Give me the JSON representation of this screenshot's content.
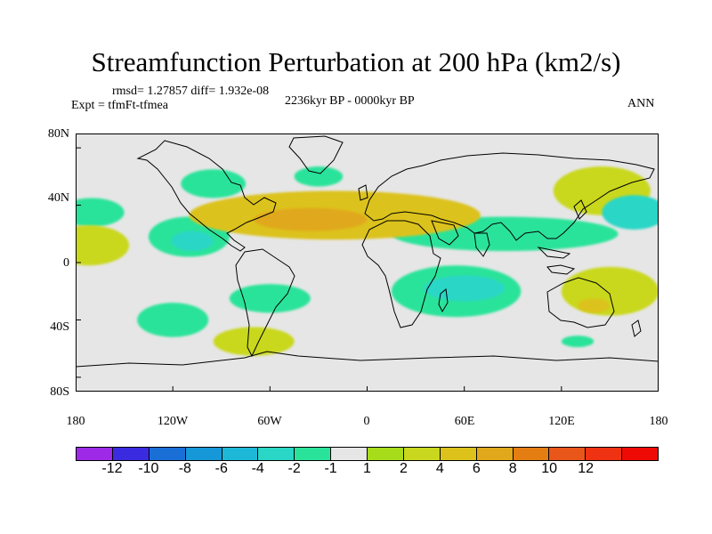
{
  "title": "Streamfunction Perturbation at 200 hPa (km2/s)",
  "stats": "rmsd= 1.27857 diff= 1.932e-08",
  "experiment": "Expt = tfmFt-tfmea",
  "period": "2236kyr BP - 0000kyr BP",
  "season": "ANN",
  "map": {
    "lat_labels": [
      "80N",
      "40N",
      "0",
      "40S",
      "80S"
    ],
    "lon_labels": [
      "180",
      "120W",
      "60W",
      "0",
      "60E",
      "120E",
      "180"
    ],
    "background": "#e6e6e6"
  },
  "colorbar": {
    "colors": [
      "#9e2ae8",
      "#3b2be0",
      "#1a6fd6",
      "#1597d8",
      "#1db8d8",
      "#2ad6c6",
      "#2ae39a",
      "#e6e6e6",
      "#a6dc1a",
      "#c9d81e",
      "#dcc21a",
      "#e0a81a",
      "#e47e12",
      "#e8561a",
      "#ee3212",
      "#f00a06"
    ],
    "labels": [
      "-12",
      "-10",
      "-8",
      "-6",
      "-4",
      "-2",
      "-1",
      "1",
      "2",
      "4",
      "6",
      "8",
      "10",
      "12"
    ]
  },
  "chart_data": {
    "type": "contour-map",
    "title": "Streamfunction Perturbation at 200 hPa (km2/s)",
    "subtitle": "2236kyr BP - 0000kyr BP",
    "annotation": "rmsd= 1.27857 diff= 1.932e-08",
    "lon_range": [
      -180,
      180
    ],
    "lat_range": [
      -90,
      90
    ],
    "levels": [
      -12,
      -10,
      -8,
      -6,
      -4,
      -2,
      -1,
      1,
      2,
      4,
      6,
      8,
      10,
      12
    ],
    "anomaly_blobs": [
      {
        "lon": -170,
        "lat": 35,
        "rx": 20,
        "ry": 10,
        "value": -2
      },
      {
        "lon": -172,
        "lat": 12,
        "rx": 25,
        "ry": 14,
        "value": 2
      },
      {
        "lon": -110,
        "lat": 18,
        "rx": 25,
        "ry": 14,
        "value": -2
      },
      {
        "lon": -108,
        "lat": 15,
        "rx": 13,
        "ry": 7,
        "value": -4
      },
      {
        "lon": -95,
        "lat": 55,
        "rx": 20,
        "ry": 10,
        "value": -2
      },
      {
        "lon": -60,
        "lat": -25,
        "rx": 25,
        "ry": 10,
        "value": -2
      },
      {
        "lon": -120,
        "lat": -40,
        "rx": 22,
        "ry": 12,
        "value": -2
      },
      {
        "lon": -70,
        "lat": -55,
        "rx": 25,
        "ry": 10,
        "value": 2
      },
      {
        "lon": -30,
        "lat": 60,
        "rx": 15,
        "ry": 7,
        "value": -2
      },
      {
        "lon": -20,
        "lat": 33,
        "rx": 90,
        "ry": 17,
        "value": 4
      },
      {
        "lon": -35,
        "lat": 30,
        "rx": 35,
        "ry": 8,
        "value": 6
      },
      {
        "lon": 55,
        "lat": -20,
        "rx": 40,
        "ry": 18,
        "value": -2
      },
      {
        "lon": 60,
        "lat": -18,
        "rx": 25,
        "ry": 9,
        "value": -4
      },
      {
        "lon": 85,
        "lat": 20,
        "rx": 70,
        "ry": 12,
        "value": -2
      },
      {
        "lon": 145,
        "lat": 50,
        "rx": 30,
        "ry": 17,
        "value": 2
      },
      {
        "lon": 165,
        "lat": 35,
        "rx": 20,
        "ry": 12,
        "value": -4
      },
      {
        "lon": 150,
        "lat": -20,
        "rx": 30,
        "ry": 17,
        "value": 2
      },
      {
        "lon": 140,
        "lat": -30,
        "rx": 10,
        "ry": 5,
        "value": 4
      },
      {
        "lon": 130,
        "lat": -55,
        "rx": 10,
        "ry": 4,
        "value": -2
      },
      {
        "lon": -84,
        "lat": 35,
        "rx": 6,
        "ry": 5,
        "value": 2
      }
    ]
  }
}
